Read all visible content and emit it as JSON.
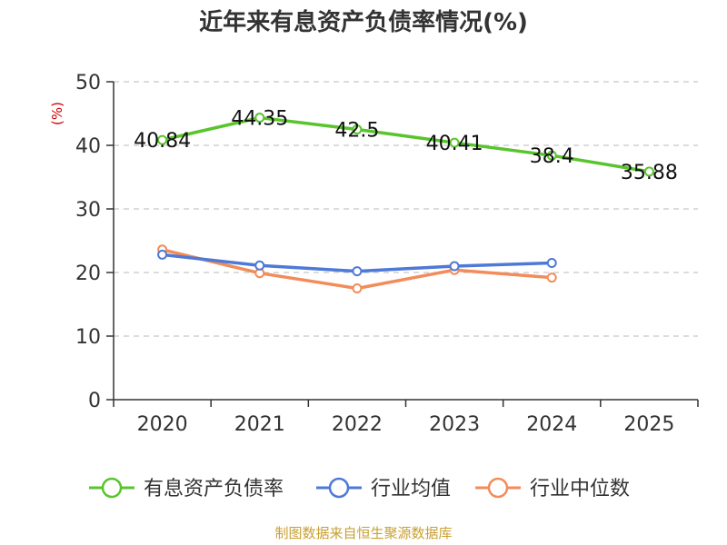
{
  "chart_data": {
    "type": "line",
    "title": "近年来有息资产负债率情况(%)",
    "ylabel": "(%)",
    "categories": [
      "2020",
      "2021",
      "2022",
      "2023",
      "2024",
      "2025"
    ],
    "ylim": [
      0,
      50
    ],
    "yticks": [
      0,
      10,
      20,
      30,
      40,
      50
    ],
    "grid": true,
    "legend_position": "bottom",
    "series": [
      {
        "name": "有息资产负债率",
        "color": "#5ac42d",
        "values": [
          40.84,
          44.35,
          42.5,
          40.41,
          38.4,
          35.88
        ],
        "show_labels": true
      },
      {
        "name": "行业均值",
        "color": "#4e79d6",
        "values": [
          22.8,
          21.1,
          20.2,
          21.0,
          21.5,
          null
        ],
        "show_labels": false
      },
      {
        "name": "行业中位数",
        "color": "#f28c5a",
        "values": [
          23.6,
          19.9,
          17.5,
          20.4,
          19.2,
          null
        ],
        "show_labels": false
      }
    ],
    "source": "制图数据来自恒生聚源数据库"
  }
}
